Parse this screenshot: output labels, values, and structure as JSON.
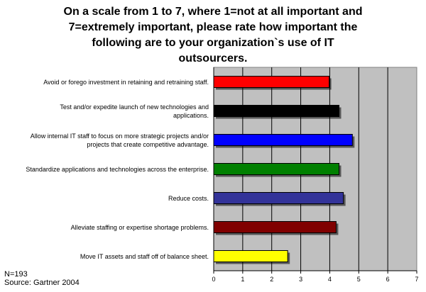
{
  "chart_data": {
    "type": "bar",
    "orientation": "horizontal",
    "title_lines": [
      "On a scale from 1 to 7, where 1=not at all important and",
      "7=extremely important, please rate how important the",
      "following are to your organization`s use of IT outsourcers."
    ],
    "categories": [
      [
        "Avoid or forego investment in retaining and retraining staff."
      ],
      [
        "Test and/or expedite launch of new technologies and",
        "applications."
      ],
      [
        "Allow internal IT staff to focus on more strategic projects and/or",
        "projects that create competitive advantage."
      ],
      [
        "Standardize applications and technologies across the enterprise."
      ],
      [
        "Reduce costs."
      ],
      [
        "Alleviate staffing or expertise shortage problems."
      ],
      [
        "Move IT assets and staff off of balance sheet."
      ]
    ],
    "values": [
      3.98,
      4.32,
      4.78,
      4.32,
      4.47,
      4.22,
      2.55
    ],
    "bar_colors": [
      "#ff0000",
      "#000000",
      "#0000ff",
      "#008000",
      "#333399",
      "#800000",
      "#ffff00"
    ],
    "xlim": [
      0,
      7
    ],
    "xticks": [
      "0",
      "1",
      "2",
      "3",
      "4",
      "5",
      "6",
      "7"
    ],
    "plot_background": "#c0c0c0",
    "gridlines": true
  },
  "footnote": {
    "n": "N=193",
    "source": "Source: Gartner 2004"
  }
}
